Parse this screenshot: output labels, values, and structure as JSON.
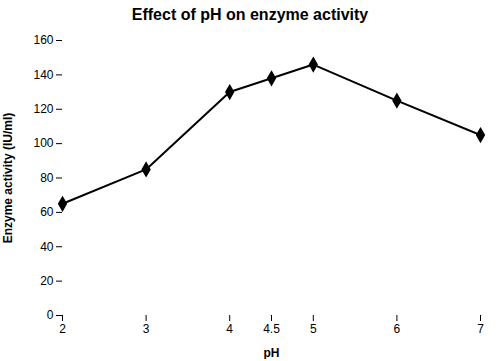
{
  "chart_data": {
    "type": "line",
    "title": "Effect of pH on enzyme activity",
    "xlabel": "pH",
    "ylabel": "Enzyme activity (IU/ml)",
    "x": [
      2,
      3,
      4,
      4.5,
      5,
      6,
      7
    ],
    "values": [
      65,
      85,
      130,
      138,
      146,
      125,
      105
    ],
    "xlim": [
      2,
      7
    ],
    "xticks": [
      2,
      3,
      4,
      4.5,
      5,
      6,
      7
    ],
    "ylim": [
      0,
      160
    ],
    "yticks": [
      0,
      20,
      40,
      60,
      80,
      100,
      120,
      140,
      160
    ],
    "color": "#000000",
    "marker": "diamond",
    "grid": false
  }
}
